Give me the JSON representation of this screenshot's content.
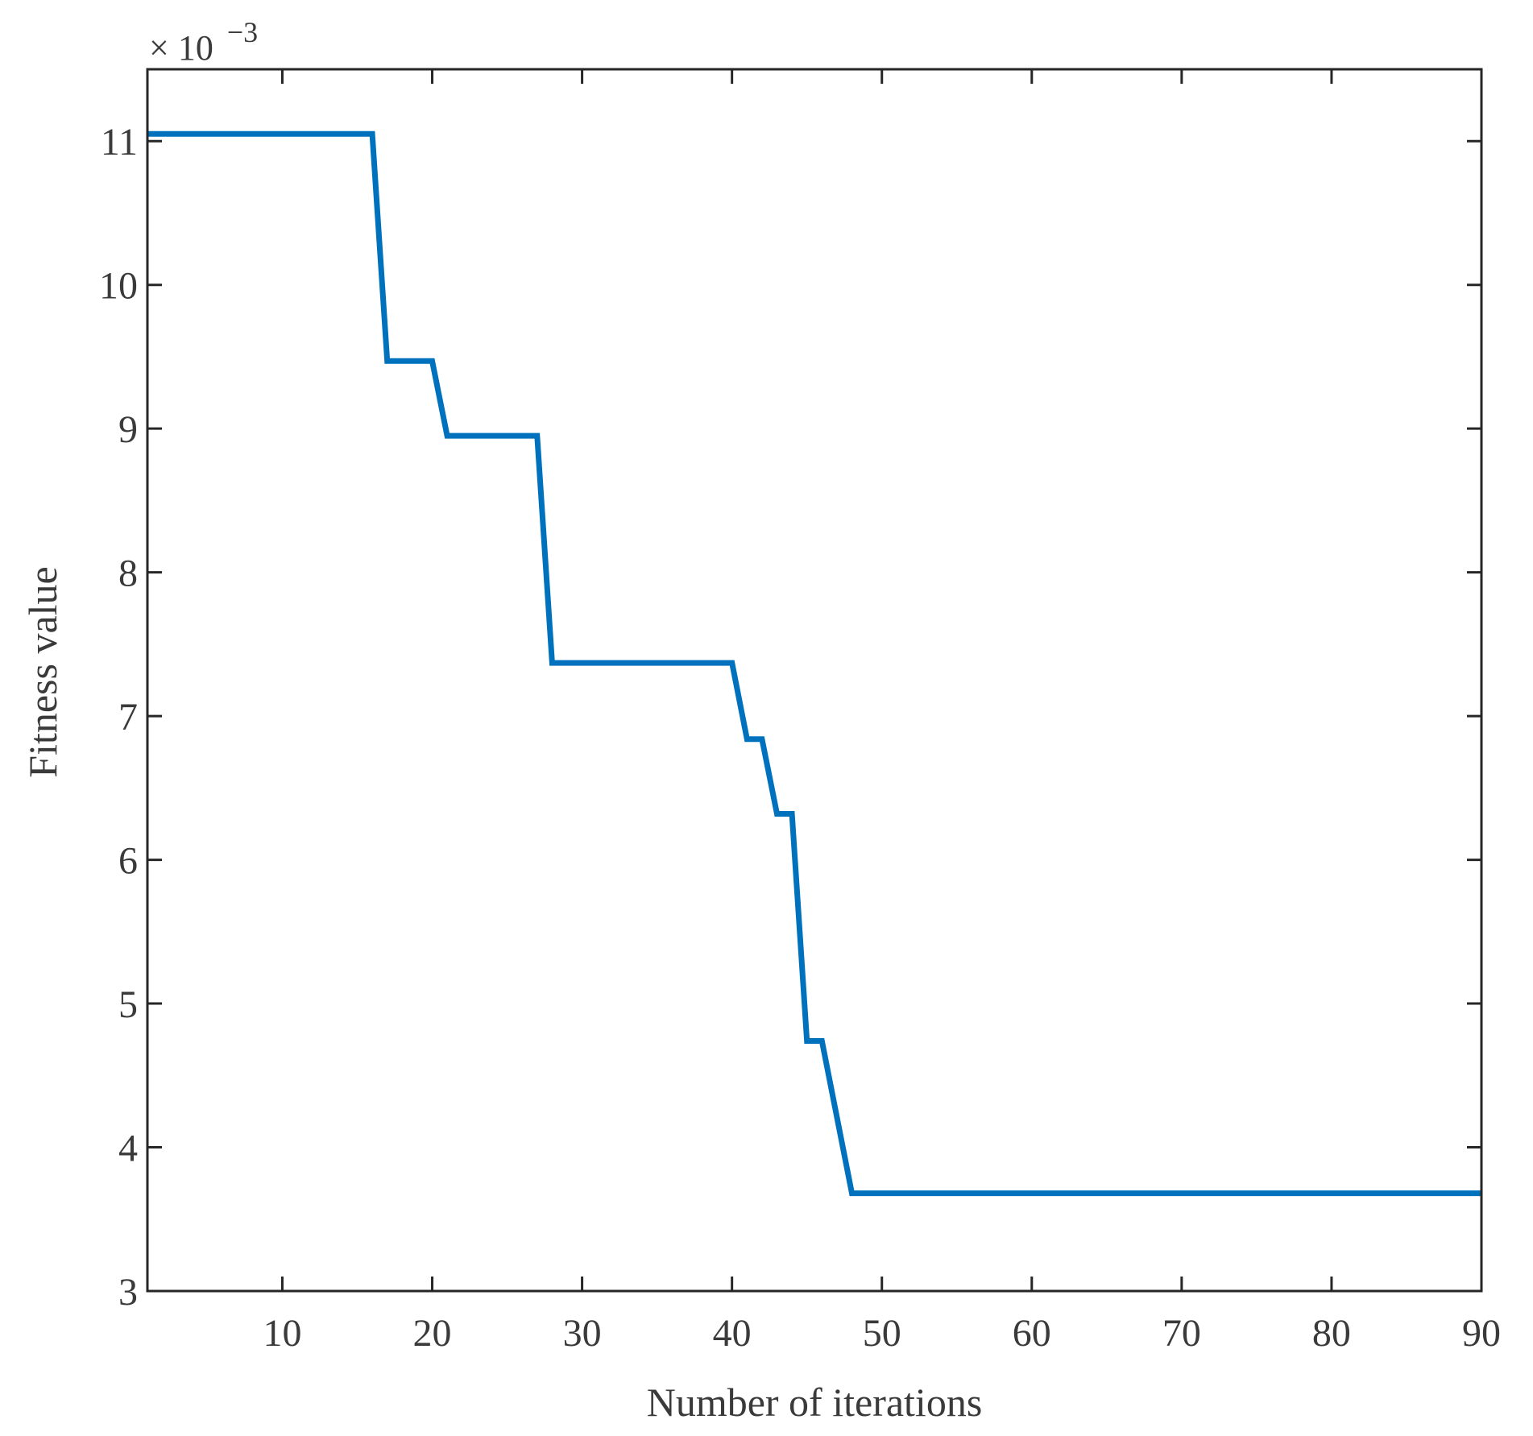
{
  "chart_data": {
    "type": "line",
    "title": "",
    "xlabel": "Number of iterations",
    "ylabel": "Fitness value",
    "y_multiplier": {
      "base": "× 10",
      "exponent": "−3"
    },
    "xlim": [
      1,
      90
    ],
    "ylim": [
      3,
      11.5
    ],
    "x_ticks": [
      10,
      20,
      30,
      40,
      50,
      60,
      70,
      80,
      90
    ],
    "x_tick_labels": [
      "10",
      "20",
      "30",
      "40",
      "50",
      "60",
      "70",
      "80",
      "90"
    ],
    "y_ticks": [
      3,
      4,
      5,
      6,
      7,
      8,
      9,
      10,
      11
    ],
    "y_tick_labels": [
      "3",
      "4",
      "5",
      "6",
      "7",
      "8",
      "9",
      "10",
      "11"
    ],
    "grid": false,
    "legend": "none",
    "series": [
      {
        "color": "#0072BD",
        "x": [
          1,
          16,
          17,
          20,
          21,
          27,
          28,
          40,
          41,
          42,
          43,
          44,
          45,
          46,
          48,
          90
        ],
        "y": [
          11.05,
          11.05,
          9.47,
          9.47,
          8.95,
          8.95,
          7.37,
          7.37,
          6.84,
          6.84,
          6.32,
          6.32,
          4.74,
          4.74,
          3.68,
          3.68
        ]
      }
    ]
  }
}
